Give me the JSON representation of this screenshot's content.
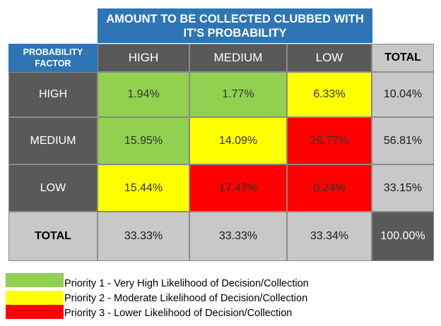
{
  "title": {
    "line1": "AMOUNT TO BE COLLECTED CLUBBED WITH",
    "line2": "IT'S PROBABILITY"
  },
  "corner": {
    "line1": "PROBABILITY",
    "line2": "FACTOR"
  },
  "columns": [
    "HIGH",
    "MEDIUM",
    "LOW",
    "TOTAL"
  ],
  "rows": [
    {
      "label": "HIGH",
      "cells": [
        "1.94%",
        "1.77%",
        "6.33%"
      ],
      "total": "10.04%",
      "colors": [
        "#92d050",
        "#92d050",
        "#ffff00"
      ]
    },
    {
      "label": "MEDIUM",
      "cells": [
        "15.95%",
        "14.09%",
        "26.77%"
      ],
      "total": "56.81%",
      "colors": [
        "#92d050",
        "#ffff00",
        "#ff0000"
      ]
    },
    {
      "label": "LOW",
      "cells": [
        "15.44%",
        "17.47%",
        "0.24%"
      ],
      "total": "33.15%",
      "colors": [
        "#ffff00",
        "#ff0000",
        "#ff0000"
      ]
    }
  ],
  "totals_row": {
    "label": "TOTAL",
    "cells": [
      "33.33%",
      "33.33%",
      "33.34%"
    ],
    "grand": "100.00%"
  },
  "legend": [
    {
      "color": "#92d050",
      "text": "Priority 1 - Very High Likelihood of Decision/Collection"
    },
    {
      "color": "#ffff00",
      "text": "Priority 2 - Moderate Likelihood of Decision/Collection"
    },
    {
      "color": "#ff0000",
      "text": "Priority 3 - Lower Likelihood of Decision/Collection"
    }
  ]
}
